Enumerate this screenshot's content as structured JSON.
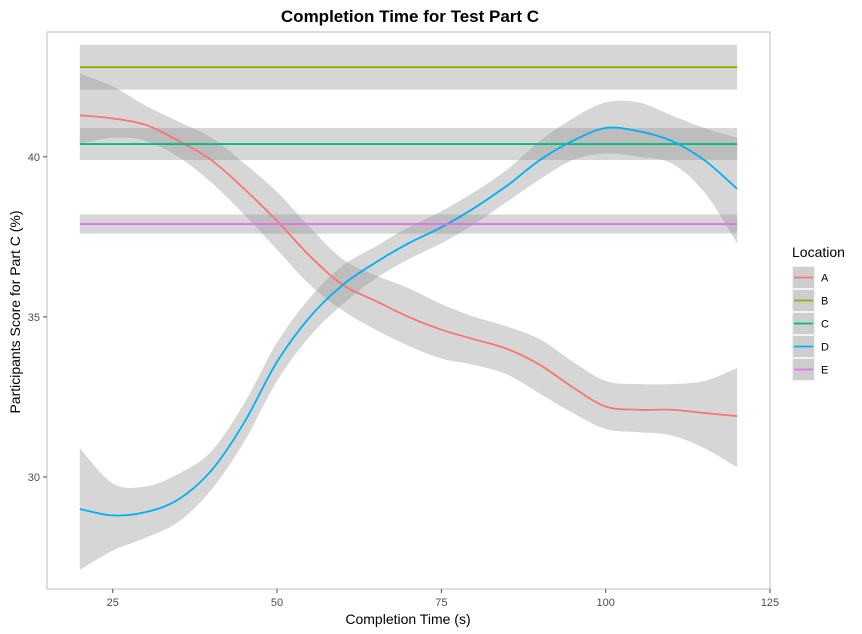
{
  "chart_data": {
    "type": "line",
    "title": "Completion Time for Test Part C",
    "xlabel": "Completion Time (s)",
    "ylabel": "Participants Score for Part C (%)",
    "xlim": [
      15,
      125
    ],
    "ylim": [
      26.5,
      43.9
    ],
    "xticks": [
      25,
      50,
      75,
      100,
      125
    ],
    "yticks": [
      30,
      35,
      40
    ],
    "grid": false,
    "legend": {
      "title": "Location",
      "position": "right"
    },
    "series": [
      {
        "name": "A",
        "color": "#F8766D",
        "x": [
          20,
          25,
          30,
          35,
          40,
          45,
          50,
          55,
          60,
          65,
          70,
          75,
          80,
          85,
          90,
          95,
          100,
          105,
          110,
          115,
          120
        ],
        "y": [
          41.3,
          41.2,
          41.0,
          40.5,
          39.9,
          39.0,
          38.0,
          36.9,
          36.0,
          35.5,
          35.0,
          34.6,
          34.3,
          34.0,
          33.5,
          32.8,
          32.2,
          32.1,
          32.1,
          32.0,
          31.9
        ],
        "lower": [
          40.4,
          40.6,
          40.5,
          40.0,
          39.2,
          38.2,
          37.1,
          36.0,
          35.2,
          34.6,
          34.1,
          33.7,
          33.5,
          33.2,
          32.6,
          32.0,
          31.5,
          31.4,
          31.3,
          30.9,
          30.3
        ],
        "upper": [
          42.6,
          42.2,
          41.6,
          41.1,
          40.6,
          39.8,
          38.9,
          37.8,
          36.8,
          36.3,
          35.9,
          35.4,
          35.0,
          34.7,
          34.3,
          33.6,
          33.0,
          32.9,
          32.9,
          33.0,
          33.4
        ]
      },
      {
        "name": "B",
        "color": "#A3A500",
        "x": [
          20,
          120
        ],
        "y": [
          42.8,
          42.8
        ],
        "lower": [
          42.1,
          42.1
        ],
        "upper": [
          43.5,
          43.5
        ]
      },
      {
        "name": "C",
        "color": "#00BF7D",
        "x": [
          20,
          120
        ],
        "y": [
          40.4,
          40.4
        ],
        "lower": [
          39.9,
          39.9
        ],
        "upper": [
          40.9,
          40.9
        ]
      },
      {
        "name": "D",
        "color": "#00B0F6",
        "x": [
          20,
          25,
          30,
          35,
          40,
          45,
          50,
          55,
          60,
          65,
          70,
          75,
          80,
          85,
          90,
          95,
          100,
          105,
          110,
          115,
          120
        ],
        "y": [
          29.0,
          28.8,
          28.9,
          29.3,
          30.2,
          31.7,
          33.6,
          35.0,
          36.0,
          36.7,
          37.3,
          37.8,
          38.4,
          39.1,
          39.9,
          40.5,
          40.9,
          40.8,
          40.5,
          39.9,
          39.0
        ],
        "lower": [
          27.1,
          27.7,
          28.1,
          28.6,
          29.6,
          31.1,
          33.0,
          34.4,
          35.4,
          36.2,
          36.8,
          37.3,
          37.9,
          38.6,
          39.3,
          39.9,
          40.1,
          40.0,
          39.8,
          38.9,
          37.3
        ],
        "upper": [
          30.9,
          29.8,
          29.7,
          30.1,
          30.8,
          32.3,
          34.2,
          35.6,
          36.6,
          37.2,
          37.8,
          38.3,
          38.9,
          39.6,
          40.5,
          41.2,
          41.7,
          41.7,
          41.3,
          40.9,
          40.6
        ]
      },
      {
        "name": "E",
        "color": "#E76BF3",
        "x": [
          20,
          120
        ],
        "y": [
          37.9,
          37.9
        ],
        "lower": [
          37.6,
          37.6
        ],
        "upper": [
          38.2,
          38.2
        ]
      }
    ]
  }
}
